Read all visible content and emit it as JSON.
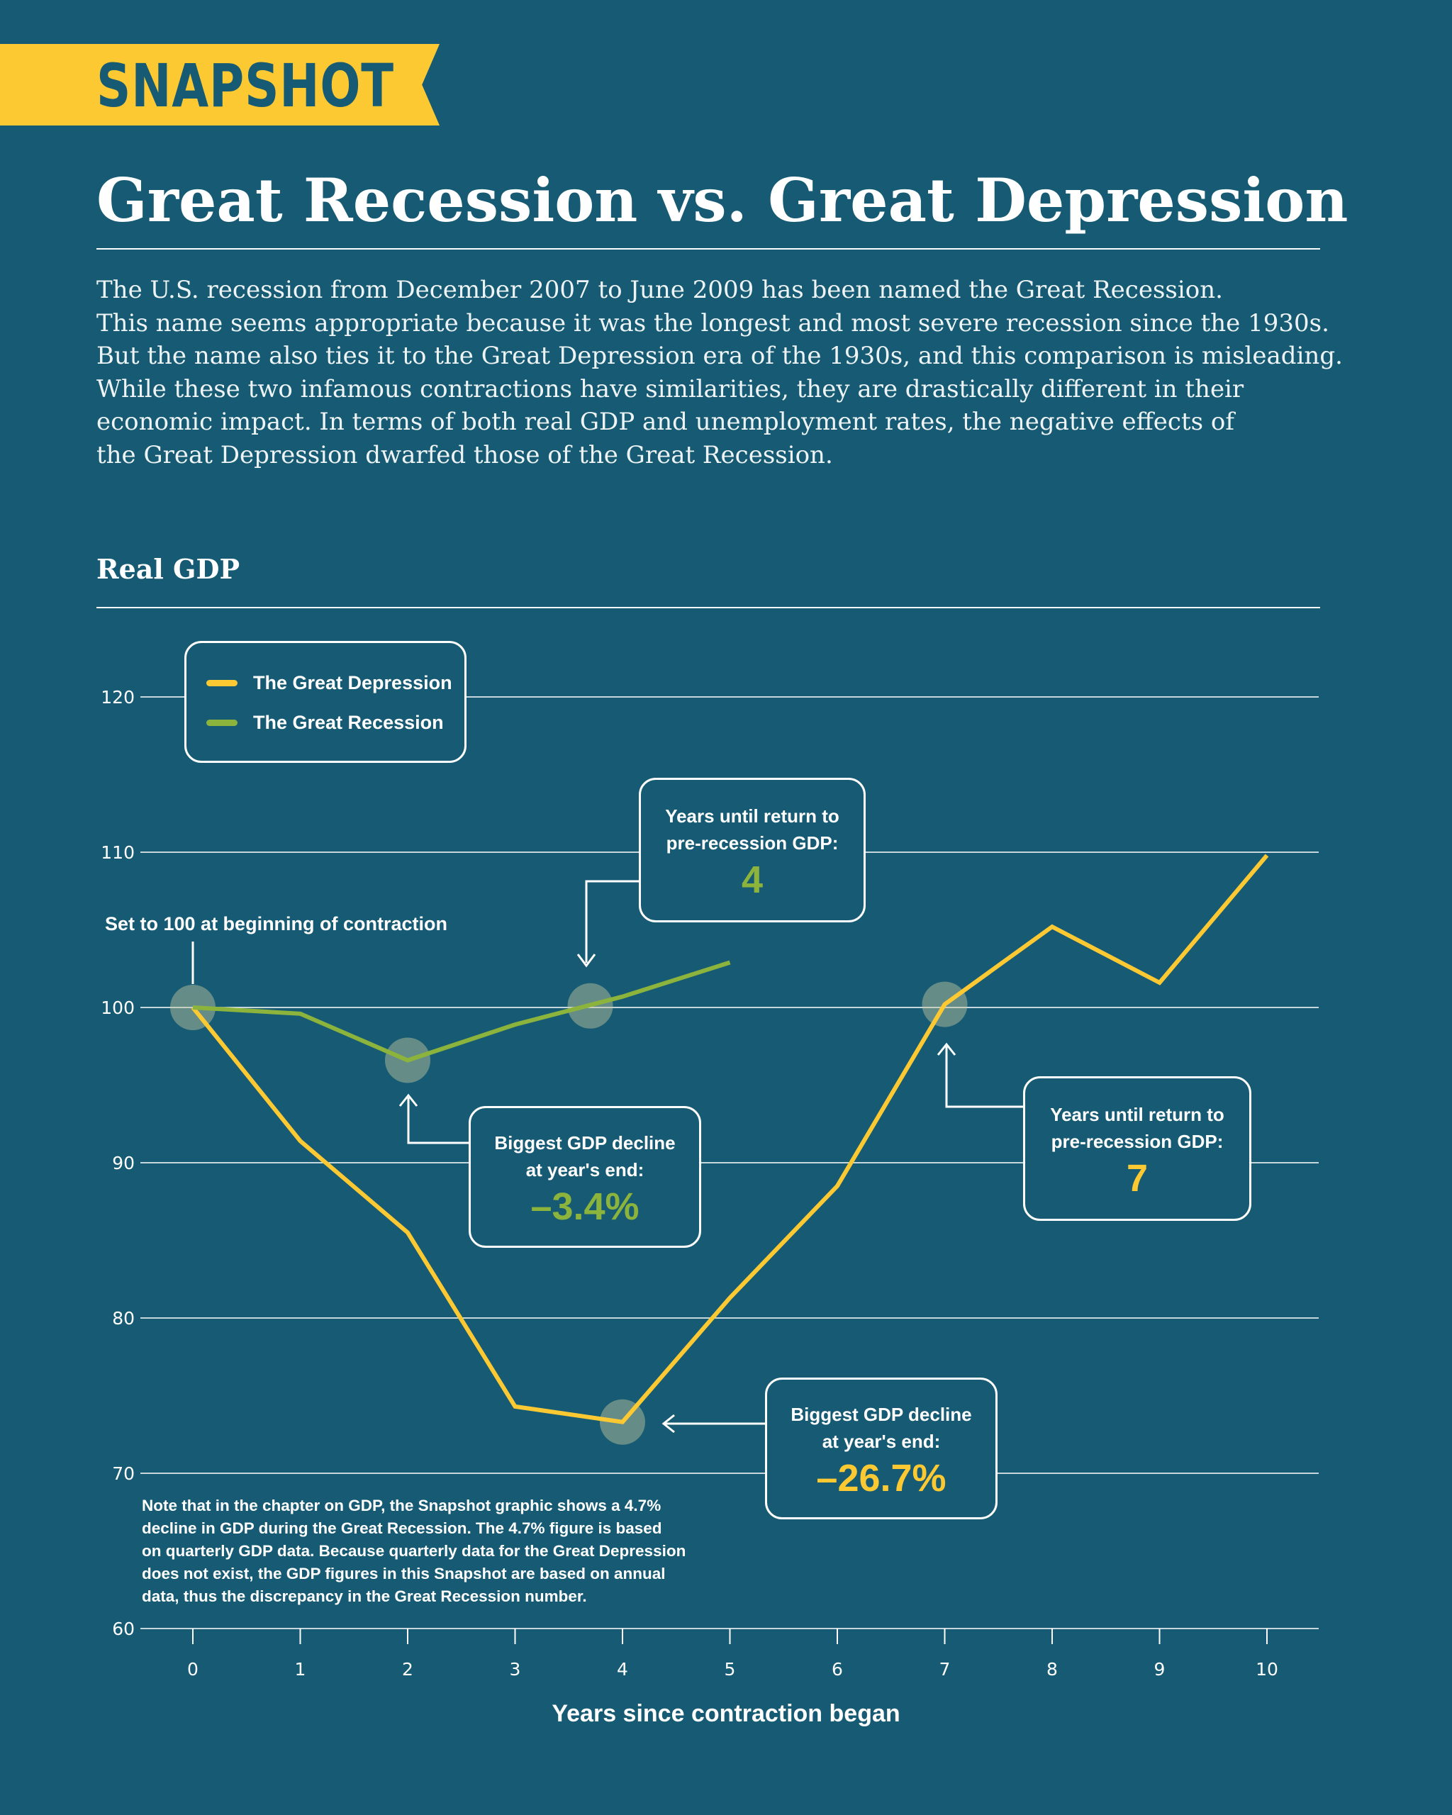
{
  "banner": {
    "label": "SNAPSHOT"
  },
  "title": "Great Recession vs. Great Depression",
  "intro_lines": [
    "The U.S. recession from December 2007 to June 2009 has been named the Great Recession.",
    "This name seems appropriate because it was the longest and most severe recession since the 1930s.",
    "But the name also ties it to the Great Depression era of the 1930s, and this comparison is misleading.",
    "While these two infamous contractions have similarities, they are drastically different in their",
    "economic impact.  In terms of both real GDP and unemployment rates, the negative effects of",
    "the Great Depression dwarfed those of the Great Recession."
  ],
  "section_title": "Real GDP",
  "legend": {
    "depression": "The Great Depression",
    "recession": "The Great Recession"
  },
  "annotations": {
    "set100": "Set to 100 at beginning of contraction",
    "recession_return": {
      "text1": "Years until return to",
      "text2": "pre-recession GDP:",
      "value": "4"
    },
    "recession_decline": {
      "text1": "Biggest GDP decline",
      "text2": "at year's end:",
      "value": "–3.4%"
    },
    "depression_return": {
      "text1": "Years until return to",
      "text2": "pre-recession GDP:",
      "value": "7"
    },
    "depression_decline": {
      "text1": "Biggest GDP decline",
      "text2": "at year's end:",
      "value": "–26.7%"
    }
  },
  "note_lines": [
    "Note that in the chapter on GDP, the Snapshot graphic shows a 4.7%",
    "decline in GDP during the Great Recession. The 4.7% figure is based",
    "on quarterly GDP data. Because quarterly data for the Great Depression",
    "does not exist, the GDP figures in this Snapshot are based on annual",
    "data, thus the discrepancy in the Great Recession number."
  ],
  "colors": {
    "background": "#165b73",
    "depression": "#fcc933",
    "recession": "#8cb43c",
    "marker": "#c8c8a0",
    "grid": "#ffffff"
  },
  "chart_data": {
    "type": "line",
    "title": "Real GDP",
    "xlabel": "Years since contraction began",
    "ylabel": "",
    "xlim": [
      0,
      10
    ],
    "ylim": [
      60,
      120
    ],
    "y_ticks": [
      60,
      70,
      80,
      90,
      100,
      110,
      120
    ],
    "x_ticks": [
      0,
      1,
      2,
      3,
      4,
      5,
      6,
      7,
      8,
      9,
      10
    ],
    "series": [
      {
        "name": "The Great Depression",
        "x": [
          0,
          1,
          2,
          3,
          4,
          5,
          6,
          7,
          8,
          9,
          10
        ],
        "values": [
          100,
          91.4,
          85.5,
          74.3,
          73.3,
          81.3,
          88.5,
          100.2,
          105.2,
          101.6,
          109.8
        ]
      },
      {
        "name": "The Great Recession",
        "x": [
          0,
          1,
          2,
          3,
          4,
          5
        ],
        "values": [
          100,
          99.6,
          96.6,
          98.9,
          100.7,
          102.9
        ]
      }
    ],
    "highlight_points": [
      {
        "series": "The Great Recession",
        "x": 0,
        "y": 100
      },
      {
        "series": "The Great Recession",
        "x": 2,
        "y": 96.6
      },
      {
        "series": "The Great Recession",
        "x": 3.7,
        "y": 100.1
      },
      {
        "series": "The Great Depression",
        "x": 4,
        "y": 73.3
      },
      {
        "series": "The Great Depression",
        "x": 7,
        "y": 100.2
      }
    ],
    "legend_position": "top-left"
  }
}
